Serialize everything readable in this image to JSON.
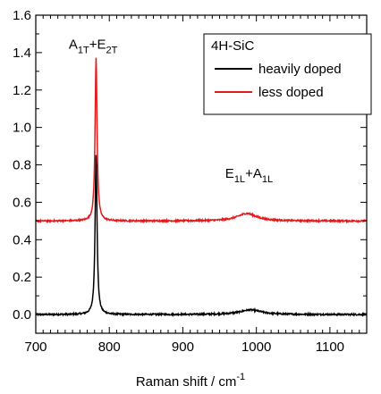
{
  "chart_data": {
    "type": "line",
    "xlabel": "Raman shift / cm",
    "xlabel_sup": "-1",
    "ylabel": "",
    "xlim": [
      700,
      1150
    ],
    "ylim": [
      -0.1,
      1.6
    ],
    "x_ticks": [
      700,
      800,
      900,
      1000,
      1100
    ],
    "x_tick_labels": [
      "700",
      "800",
      "900",
      "1000",
      "1100"
    ],
    "y_ticks": [
      0.0,
      0.2,
      0.4,
      0.6,
      0.8,
      1.0,
      1.2,
      1.4,
      1.6
    ],
    "y_tick_labels": [
      "0.0",
      "0.2",
      "0.4",
      "0.6",
      "0.8",
      "1.0",
      "1.2",
      "1.4",
      "1.6"
    ],
    "grid": false,
    "legend": {
      "title": "4H-SiC",
      "placement": "top-right",
      "entries": [
        {
          "label": "heavily doped",
          "color": "#000000"
        },
        {
          "label": "less doped",
          "color": "#e31a1c"
        }
      ]
    },
    "annotations": [
      {
        "parts": [
          [
            "A",
            "base"
          ],
          [
            "1T",
            "sub"
          ],
          [
            "+E",
            "base"
          ],
          [
            "2T",
            "sub"
          ]
        ],
        "x": 778,
        "y": 1.42
      },
      {
        "parts": [
          [
            "E",
            "base"
          ],
          [
            "1L",
            "sub"
          ],
          [
            "+A",
            "base"
          ],
          [
            "1L",
            "sub"
          ]
        ],
        "x": 990,
        "y": 0.73
      }
    ],
    "series": [
      {
        "name": "heavily doped",
        "color": "#000000",
        "baseline": 0.0,
        "peaks": [
          {
            "center": 782,
            "height": 0.85,
            "width": 1.6
          },
          {
            "center": 992,
            "height": 0.025,
            "width": 18
          }
        ]
      },
      {
        "name": "less doped",
        "color": "#e31a1c",
        "baseline": 0.5,
        "peaks": [
          {
            "center": 782,
            "height": 0.87,
            "width": 1.6
          },
          {
            "center": 987,
            "height": 0.04,
            "width": 16
          }
        ]
      }
    ]
  }
}
